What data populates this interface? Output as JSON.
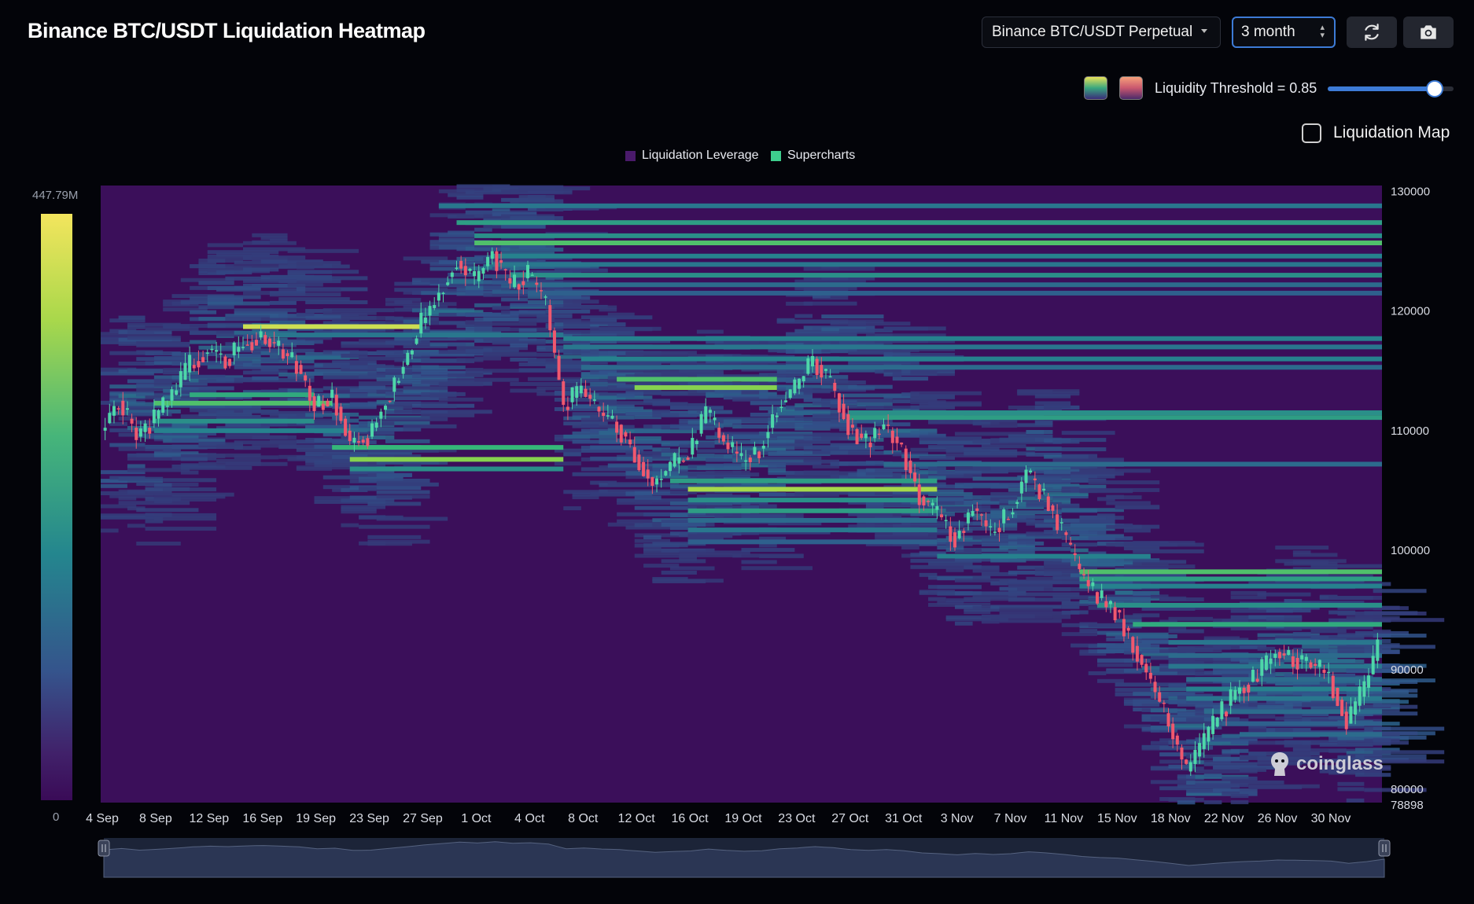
{
  "header": {
    "title": "Binance BTC/USDT Liquidation Heatmap"
  },
  "controls": {
    "pair_select": "Binance BTC/USDT Perpetual",
    "period_select": "3 month",
    "refresh_icon": "refresh-icon",
    "camera_icon": "camera-icon",
    "threshold_label": "Liquidity Threshold = 0.85",
    "threshold_value": 0.85,
    "liquidation_map_label": "Liquidation Map",
    "liquidation_map_checked": false
  },
  "colors": {
    "accent": "#3d7bd6",
    "background": "#030409",
    "heatmap_base": "#3b0f5a",
    "candle_up": "#4ed6a8",
    "candle_down": "#f0586e"
  },
  "legend": [
    {
      "label": "Liquidation Leverage",
      "color": "#4a1a6b"
    },
    {
      "label": "Supercharts",
      "color": "#3ecf8e"
    }
  ],
  "colorbar": {
    "max_label": "447.79M",
    "min_label": "0"
  },
  "watermark": "coinglass",
  "chart_data": {
    "type": "heatmap",
    "title": "Binance BTC/USDT Liquidation Heatmap",
    "x_ticks": [
      "4 Sep",
      "8 Sep",
      "12 Sep",
      "16 Sep",
      "19 Sep",
      "23 Sep",
      "27 Sep",
      "1 Oct",
      "4 Oct",
      "8 Oct",
      "12 Oct",
      "16 Oct",
      "19 Oct",
      "23 Oct",
      "27 Oct",
      "31 Oct",
      "3 Nov",
      "7 Nov",
      "11 Nov",
      "15 Nov",
      "18 Nov",
      "22 Nov",
      "26 Nov",
      "30 Nov"
    ],
    "y_ticks": [
      "130000",
      "120000",
      "110000",
      "100000",
      "90000",
      "80000",
      "78898"
    ],
    "ylim": [
      78898,
      130500
    ],
    "price_path": [
      [
        0,
        110000
      ],
      [
        2,
        112500
      ],
      [
        4,
        109500
      ],
      [
        6,
        111000
      ],
      [
        8,
        113000
      ],
      [
        10,
        115500
      ],
      [
        12,
        116800
      ],
      [
        14,
        116000
      ],
      [
        16,
        117200
      ],
      [
        18,
        118000
      ],
      [
        20,
        116800
      ],
      [
        22,
        115500
      ],
      [
        24,
        112000
      ],
      [
        26,
        113000
      ],
      [
        28,
        109000
      ],
      [
        30,
        109500
      ],
      [
        32,
        112500
      ],
      [
        34,
        115500
      ],
      [
        36,
        119000
      ],
      [
        38,
        121500
      ],
      [
        40,
        124200
      ],
      [
        42,
        122500
      ],
      [
        44,
        125000
      ],
      [
        46,
        122000
      ],
      [
        48,
        123000
      ],
      [
        50,
        120500
      ],
      [
        52,
        112000
      ],
      [
        54,
        113500
      ],
      [
        56,
        111500
      ],
      [
        58,
        110500
      ],
      [
        60,
        108000
      ],
      [
        62,
        105500
      ],
      [
        64,
        107000
      ],
      [
        66,
        108000
      ],
      [
        68,
        111500
      ],
      [
        70,
        109000
      ],
      [
        72,
        107500
      ],
      [
        74,
        108500
      ],
      [
        76,
        112000
      ],
      [
        78,
        113500
      ],
      [
        80,
        116000
      ],
      [
        82,
        114000
      ],
      [
        84,
        110500
      ],
      [
        86,
        109000
      ],
      [
        88,
        110500
      ],
      [
        90,
        108500
      ],
      [
        92,
        104500
      ],
      [
        94,
        103000
      ],
      [
        96,
        101000
      ],
      [
        98,
        103500
      ],
      [
        100,
        101500
      ],
      [
        102,
        103000
      ],
      [
        104,
        106500
      ],
      [
        106,
        104500
      ],
      [
        108,
        101500
      ],
      [
        110,
        98000
      ],
      [
        112,
        96000
      ],
      [
        114,
        95000
      ],
      [
        116,
        92000
      ],
      [
        118,
        89000
      ],
      [
        120,
        85500
      ],
      [
        122,
        81500
      ],
      [
        124,
        84000
      ],
      [
        126,
        86500
      ],
      [
        128,
        88500
      ],
      [
        130,
        89500
      ],
      [
        132,
        91500
      ],
      [
        134,
        91000
      ],
      [
        136,
        90500
      ],
      [
        138,
        89500
      ],
      [
        140,
        85500
      ],
      [
        142,
        88500
      ],
      [
        144,
        93000
      ]
    ],
    "liquidation_bands": [
      {
        "price": 128800,
        "from": 38,
        "to": 144,
        "intensity": 0.45
      },
      {
        "price": 127400,
        "from": 40,
        "to": 144,
        "intensity": 0.6
      },
      {
        "price": 126300,
        "from": 42,
        "to": 144,
        "intensity": 0.55
      },
      {
        "price": 125700,
        "from": 42,
        "to": 144,
        "intensity": 0.75
      },
      {
        "price": 124600,
        "from": 44,
        "to": 144,
        "intensity": 0.5
      },
      {
        "price": 123900,
        "from": 44,
        "to": 144,
        "intensity": 0.45
      },
      {
        "price": 123000,
        "from": 46,
        "to": 144,
        "intensity": 0.55
      },
      {
        "price": 122200,
        "from": 46,
        "to": 144,
        "intensity": 0.4
      },
      {
        "price": 121500,
        "from": 48,
        "to": 144,
        "intensity": 0.35
      },
      {
        "price": 118700,
        "from": 16,
        "to": 36,
        "intensity": 0.95
      },
      {
        "price": 118000,
        "from": 18,
        "to": 52,
        "intensity": 0.45
      },
      {
        "price": 117700,
        "from": 52,
        "to": 144,
        "intensity": 0.5
      },
      {
        "price": 117000,
        "from": 52,
        "to": 144,
        "intensity": 0.45
      },
      {
        "price": 116000,
        "from": 54,
        "to": 144,
        "intensity": 0.5
      },
      {
        "price": 115300,
        "from": 54,
        "to": 144,
        "intensity": 0.4
      },
      {
        "price": 114300,
        "from": 58,
        "to": 76,
        "intensity": 0.75
      },
      {
        "price": 113600,
        "from": 60,
        "to": 76,
        "intensity": 0.85
      },
      {
        "price": 113000,
        "from": 10,
        "to": 24,
        "intensity": 0.65
      },
      {
        "price": 112300,
        "from": 6,
        "to": 26,
        "intensity": 0.75
      },
      {
        "price": 111500,
        "from": 84,
        "to": 144,
        "intensity": 0.55
      },
      {
        "price": 111100,
        "from": 84,
        "to": 144,
        "intensity": 0.6
      },
      {
        "price": 110800,
        "from": 6,
        "to": 24,
        "intensity": 0.55
      },
      {
        "price": 110000,
        "from": 6,
        "to": 28,
        "intensity": 0.5
      },
      {
        "price": 108600,
        "from": 26,
        "to": 52,
        "intensity": 0.7
      },
      {
        "price": 107600,
        "from": 28,
        "to": 52,
        "intensity": 0.85
      },
      {
        "price": 107200,
        "from": 88,
        "to": 144,
        "intensity": 0.4
      },
      {
        "price": 106800,
        "from": 28,
        "to": 52,
        "intensity": 0.55
      },
      {
        "price": 105800,
        "from": 64,
        "to": 94,
        "intensity": 0.6
      },
      {
        "price": 105100,
        "from": 66,
        "to": 94,
        "intensity": 0.9
      },
      {
        "price": 104200,
        "from": 66,
        "to": 94,
        "intensity": 0.55
      },
      {
        "price": 103300,
        "from": 66,
        "to": 94,
        "intensity": 0.6
      },
      {
        "price": 102500,
        "from": 66,
        "to": 94,
        "intensity": 0.4
      },
      {
        "price": 101700,
        "from": 66,
        "to": 94,
        "intensity": 0.45
      },
      {
        "price": 100700,
        "from": 66,
        "to": 94,
        "intensity": 0.35
      },
      {
        "price": 99500,
        "from": 94,
        "to": 118,
        "intensity": 0.5
      },
      {
        "price": 98200,
        "from": 110,
        "to": 144,
        "intensity": 0.75
      },
      {
        "price": 97600,
        "from": 110,
        "to": 144,
        "intensity": 0.6
      },
      {
        "price": 97000,
        "from": 110,
        "to": 144,
        "intensity": 0.5
      },
      {
        "price": 95400,
        "from": 112,
        "to": 144,
        "intensity": 0.55
      },
      {
        "price": 93800,
        "from": 116,
        "to": 144,
        "intensity": 0.65
      },
      {
        "price": 92300,
        "from": 120,
        "to": 144,
        "intensity": 0.45
      },
      {
        "price": 91200,
        "from": 120,
        "to": 144,
        "intensity": 0.4
      },
      {
        "price": 90300,
        "from": 120,
        "to": 144,
        "intensity": 0.45
      },
      {
        "price": 89200,
        "from": 122,
        "to": 144,
        "intensity": 0.4
      },
      {
        "price": 88400,
        "from": 122,
        "to": 144,
        "intensity": 0.5
      },
      {
        "price": 87600,
        "from": 122,
        "to": 144,
        "intensity": 0.45
      },
      {
        "price": 86500,
        "from": 124,
        "to": 144,
        "intensity": 0.4
      },
      {
        "price": 85500,
        "from": 126,
        "to": 144,
        "intensity": 0.35
      },
      {
        "price": 84600,
        "from": 128,
        "to": 144,
        "intensity": 0.4
      }
    ]
  }
}
